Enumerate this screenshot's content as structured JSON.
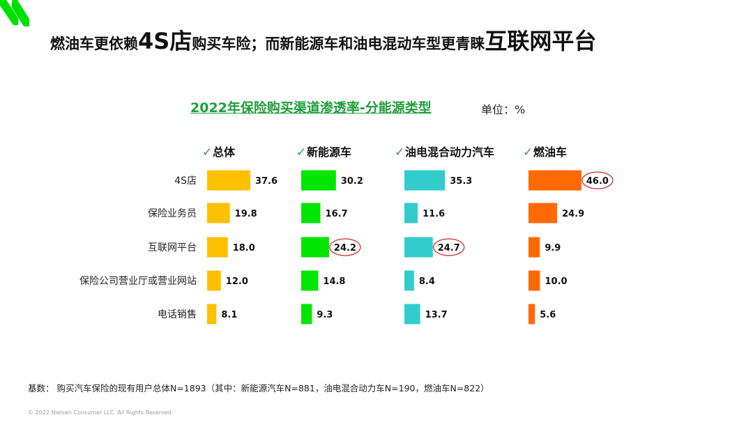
{
  "headline": {
    "part1": "燃油车更依赖",
    "part2": "4S店",
    "part3": "购买车险；而新能源车和油电混动车型更青睐",
    "part4": "互联网平台"
  },
  "chart_title": "2022年保险购买渠道渗透率-分能源类型",
  "unit_label": "单位：%",
  "check_mark": "✓",
  "colors": {
    "brand": "#00e000",
    "title": "#1f9e3a",
    "check": "#1fa83c",
    "highlight_ring": "#d22a2a"
  },
  "chart_data": {
    "type": "bar",
    "orientation": "horizontal",
    "title": "2022年保险购买渠道渗透率-分能源类型",
    "unit": "%",
    "categories": [
      "4S店",
      "保险业务员",
      "互联网平台",
      "保险公司营业厅或营业网站",
      "电话销售"
    ],
    "series": [
      {
        "name": "总体",
        "color": "#ffc000",
        "values": [
          37.6,
          19.8,
          18.0,
          12.0,
          8.1
        ],
        "highlight": []
      },
      {
        "name": "新能源车",
        "color": "#00e600",
        "values": [
          30.2,
          16.7,
          24.2,
          14.8,
          9.3
        ],
        "highlight": [
          2
        ]
      },
      {
        "name": "油电混合动力汽车",
        "color": "#33cccc",
        "values": [
          35.3,
          11.6,
          24.7,
          8.4,
          13.7
        ],
        "highlight": [
          2
        ]
      },
      {
        "name": "燃油车",
        "color": "#ff6a00",
        "values": [
          46.0,
          24.9,
          9.9,
          10.0,
          5.6
        ],
        "highlight": [
          0
        ]
      }
    ]
  },
  "footnote": "基数：  购买汽车保险的现有用户总体N=1893（其中：新能源汽车N=881，油电混合动力车N=190，燃油车N=822）",
  "copyright": "© 2022 Nielsen Consumer LLC. All Rights Reserved."
}
